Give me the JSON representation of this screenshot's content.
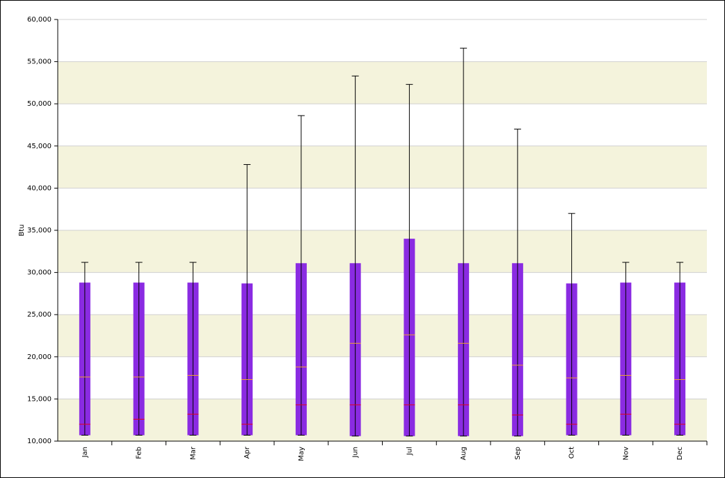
{
  "chart_data": {
    "type": "box",
    "y_label": "Btu",
    "categories": [
      "Jan",
      "Feb",
      "Mar",
      "Apr",
      "May",
      "Jun",
      "Jul",
      "Aug",
      "Sep",
      "Oct",
      "Nov",
      "Dec"
    ],
    "low": [
      10700,
      10700,
      10700,
      10700,
      10700,
      10600,
      10600,
      10600,
      10600,
      10700,
      10700,
      10700
    ],
    "high": [
      28800,
      28800,
      28800,
      28700,
      31100,
      31100,
      34000,
      31100,
      31100,
      28700,
      28800,
      28800
    ],
    "max": [
      31200,
      31200,
      31200,
      42800,
      48600,
      53300,
      52300,
      56600,
      47000,
      37000,
      31200,
      31200
    ],
    "red_line": [
      12000,
      12600,
      13200,
      12000,
      14300,
      14300,
      14300,
      14300,
      13100,
      12000,
      13200,
      12000
    ],
    "orange_line": [
      17600,
      17600,
      17800,
      17300,
      18800,
      21600,
      22600,
      21600,
      19000,
      17500,
      17800,
      17300
    ],
    "box_color": "#8a2be2",
    "red_color": "#e0001b",
    "orange_color": "#f0a030",
    "band_color": "#f4f3dc",
    "ylim": [
      10000,
      60000
    ],
    "yticks": [
      {
        "value": 10000,
        "label": "10,000"
      },
      {
        "value": 15000,
        "label": "15,000"
      },
      {
        "value": 20000,
        "label": "20,000"
      },
      {
        "value": 25000,
        "label": "25,000"
      },
      {
        "value": 30000,
        "label": "30,000"
      },
      {
        "value": 35000,
        "label": "35,000"
      },
      {
        "value": 40000,
        "label": "40,000"
      },
      {
        "value": 45000,
        "label": "45,000"
      },
      {
        "value": 50000,
        "label": "50,000"
      },
      {
        "value": 55000,
        "label": "55,000"
      },
      {
        "value": 60000,
        "label": "60,000"
      }
    ],
    "grid": true
  }
}
